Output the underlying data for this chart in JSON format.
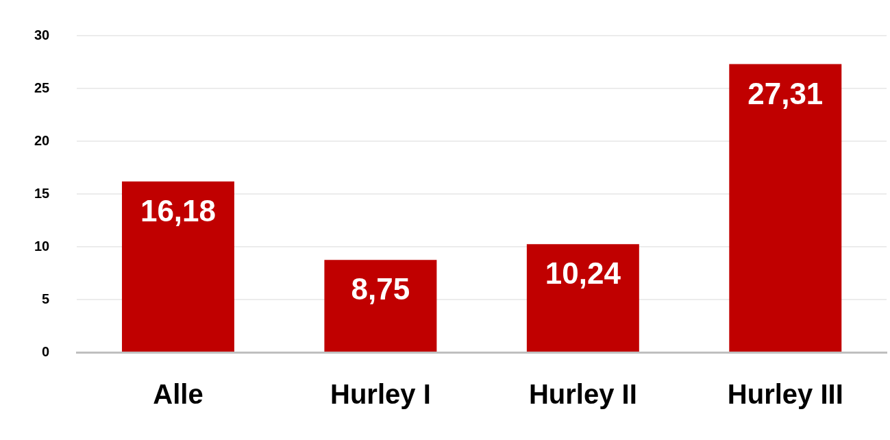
{
  "chart_data": {
    "type": "bar",
    "categories": [
      "Alle",
      "Hurley I",
      "Hurley II",
      "Hurley III"
    ],
    "values": [
      16.18,
      8.75,
      10.24,
      27.31
    ],
    "color": "#c00000",
    "value_labels": [
      "16,18",
      "8,75",
      "10,24",
      "27,31"
    ],
    "ylim": [
      0,
      30
    ],
    "yticks": [
      0,
      5,
      10,
      15,
      20,
      25,
      30
    ],
    "grid": "y"
  }
}
